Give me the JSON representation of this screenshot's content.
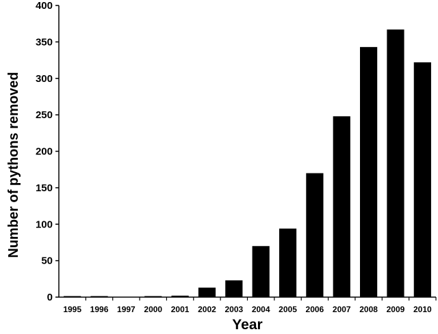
{
  "chart_data": {
    "type": "bar",
    "title": "",
    "xlabel": "Year",
    "ylabel": "Number of pythons removed",
    "categories": [
      "1995",
      "1996",
      "1997",
      "2000",
      "2001",
      "2002",
      "2003",
      "2004",
      "2005",
      "2006",
      "2007",
      "2008",
      "2009",
      "2010"
    ],
    "values": [
      1,
      1,
      0,
      1,
      2,
      13,
      23,
      70,
      94,
      170,
      248,
      343,
      367,
      322
    ],
    "ylim": [
      0,
      400
    ],
    "yticks": [
      "0",
      "50",
      "100",
      "150",
      "200",
      "250",
      "300",
      "350",
      "400"
    ],
    "grid": false,
    "legend": "none",
    "bar_color": "#000000",
    "axis_color": "#000000"
  }
}
